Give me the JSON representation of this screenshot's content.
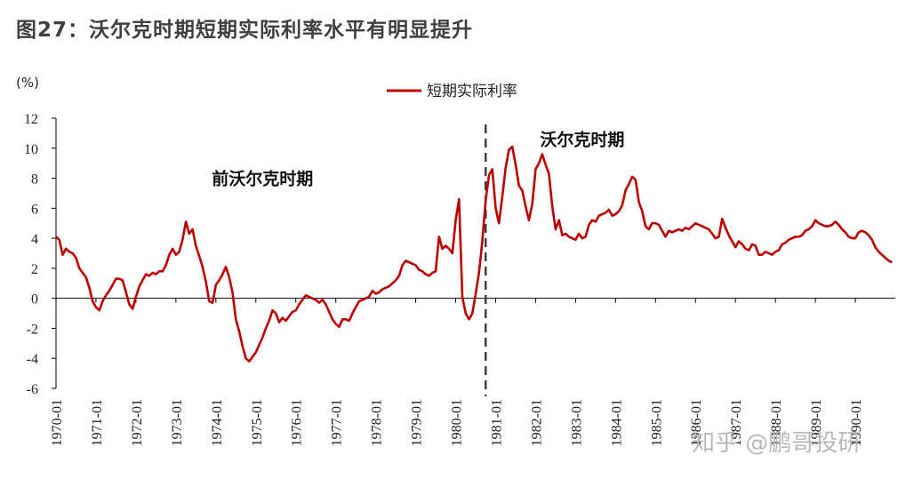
{
  "figure_title": "图27：沃尔克时期短期实际利率水平有明显提升",
  "watermark": "知乎 @鹏哥投研",
  "colors": {
    "series": "#c00000",
    "axis": "#000000",
    "divider": "#404040"
  },
  "chart_data": {
    "type": "line",
    "title": "",
    "ylabel": "(%)",
    "xlabel": "",
    "ylim": [
      -6,
      12
    ],
    "yticks": [
      -6,
      -4,
      -2,
      0,
      2,
      4,
      6,
      8,
      10,
      12
    ],
    "xlim": [
      "1970-01",
      "1990-12"
    ],
    "xticks": [
      "1970-01",
      "1971-01",
      "1972-01",
      "1973-01",
      "1974-01",
      "1975-01",
      "1976-01",
      "1977-01",
      "1978-01",
      "1979-01",
      "1980-01",
      "1981-01",
      "1982-01",
      "1983-01",
      "1984-01",
      "1985-01",
      "1986-01",
      "1987-01",
      "1988-01",
      "1989-01",
      "1990-01"
    ],
    "grid": false,
    "legend": {
      "position": "top-center",
      "entries": [
        "短期实际利率"
      ]
    },
    "annotations": [
      {
        "text": "前沃尔克时期",
        "x": "1975-03",
        "y": 7.6
      },
      {
        "text": "沃尔克时期",
        "x": "1983-03",
        "y": 10.2
      }
    ],
    "divider_x": "1980-10",
    "series": [
      {
        "name": "短期实际利率",
        "points": [
          [
            "1970-01",
            4.1
          ],
          [
            "1970-02",
            3.9
          ],
          [
            "1970-03",
            2.9
          ],
          [
            "1970-04",
            3.3
          ],
          [
            "1970-05",
            3.1
          ],
          [
            "1970-06",
            3.0
          ],
          [
            "1970-07",
            2.7
          ],
          [
            "1970-08",
            2.0
          ],
          [
            "1970-09",
            1.7
          ],
          [
            "1970-10",
            1.4
          ],
          [
            "1970-11",
            0.7
          ],
          [
            "1970-12",
            -0.2
          ],
          [
            "1971-01",
            -0.6
          ],
          [
            "1971-02",
            -0.8
          ],
          [
            "1971-03",
            -0.2
          ],
          [
            "1971-04",
            0.2
          ],
          [
            "1971-05",
            0.5
          ],
          [
            "1971-06",
            0.9
          ],
          [
            "1971-07",
            1.3
          ],
          [
            "1971-08",
            1.3
          ],
          [
            "1971-09",
            1.2
          ],
          [
            "1971-10",
            0.4
          ],
          [
            "1971-11",
            -0.4
          ],
          [
            "1971-12",
            -0.7
          ],
          [
            "1972-01",
            0.1
          ],
          [
            "1972-02",
            0.8
          ],
          [
            "1972-03",
            1.2
          ],
          [
            "1972-04",
            1.6
          ],
          [
            "1972-05",
            1.5
          ],
          [
            "1972-06",
            1.7
          ],
          [
            "1972-07",
            1.6
          ],
          [
            "1972-08",
            1.8
          ],
          [
            "1972-09",
            1.8
          ],
          [
            "1972-10",
            2.2
          ],
          [
            "1972-11",
            2.9
          ],
          [
            "1972-12",
            3.3
          ],
          [
            "1973-01",
            2.9
          ],
          [
            "1973-02",
            3.1
          ],
          [
            "1973-03",
            3.9
          ],
          [
            "1973-04",
            5.1
          ],
          [
            "1973-05",
            4.3
          ],
          [
            "1973-06",
            4.6
          ],
          [
            "1973-07",
            3.5
          ],
          [
            "1973-08",
            2.8
          ],
          [
            "1973-09",
            2.1
          ],
          [
            "1973-10",
            1.1
          ],
          [
            "1973-11",
            -0.2
          ],
          [
            "1973-12",
            -0.3
          ],
          [
            "1974-01",
            0.9
          ],
          [
            "1974-02",
            1.2
          ],
          [
            "1974-03",
            1.6
          ],
          [
            "1974-04",
            2.1
          ],
          [
            "1974-05",
            1.4
          ],
          [
            "1974-06",
            0.4
          ],
          [
            "1974-07",
            -1.4
          ],
          [
            "1974-08",
            -2.2
          ],
          [
            "1974-09",
            -3.2
          ],
          [
            "1974-10",
            -4.0
          ],
          [
            "1974-11",
            -4.2
          ],
          [
            "1974-12",
            -3.9
          ],
          [
            "1975-01",
            -3.6
          ],
          [
            "1975-02",
            -3.1
          ],
          [
            "1975-03",
            -2.6
          ],
          [
            "1975-04",
            -2.0
          ],
          [
            "1975-05",
            -1.5
          ],
          [
            "1975-06",
            -0.8
          ],
          [
            "1975-07",
            -1.0
          ],
          [
            "1975-08",
            -1.6
          ],
          [
            "1975-09",
            -1.3
          ],
          [
            "1975-10",
            -1.5
          ],
          [
            "1975-11",
            -1.2
          ],
          [
            "1975-12",
            -0.9
          ],
          [
            "1976-01",
            -0.8
          ],
          [
            "1976-02",
            -0.4
          ],
          [
            "1976-03",
            -0.1
          ],
          [
            "1976-04",
            0.2
          ],
          [
            "1976-05",
            0.1
          ],
          [
            "1976-06",
            0.0
          ],
          [
            "1976-07",
            -0.1
          ],
          [
            "1976-08",
            -0.3
          ],
          [
            "1976-09",
            -0.1
          ],
          [
            "1976-10",
            -0.4
          ],
          [
            "1976-11",
            -0.9
          ],
          [
            "1976-12",
            -1.4
          ],
          [
            "1977-01",
            -1.7
          ],
          [
            "1977-02",
            -1.9
          ],
          [
            "1977-03",
            -1.4
          ],
          [
            "1977-04",
            -1.4
          ],
          [
            "1977-05",
            -1.5
          ],
          [
            "1977-06",
            -1.0
          ],
          [
            "1977-07",
            -0.6
          ],
          [
            "1977-08",
            -0.2
          ],
          [
            "1977-09",
            -0.1
          ],
          [
            "1977-10",
            0.0
          ],
          [
            "1977-11",
            0.1
          ],
          [
            "1977-12",
            0.5
          ],
          [
            "1978-01",
            0.3
          ],
          [
            "1978-02",
            0.4
          ],
          [
            "1978-03",
            0.6
          ],
          [
            "1978-04",
            0.7
          ],
          [
            "1978-05",
            0.8
          ],
          [
            "1978-06",
            1.0
          ],
          [
            "1978-07",
            1.2
          ],
          [
            "1978-08",
            1.5
          ],
          [
            "1978-09",
            2.2
          ],
          [
            "1978-10",
            2.5
          ],
          [
            "1978-11",
            2.4
          ],
          [
            "1978-12",
            2.3
          ],
          [
            "1979-01",
            2.2
          ],
          [
            "1979-02",
            1.9
          ],
          [
            "1979-03",
            1.8
          ],
          [
            "1979-04",
            1.6
          ],
          [
            "1979-05",
            1.5
          ],
          [
            "1979-06",
            1.7
          ],
          [
            "1979-07",
            1.8
          ],
          [
            "1979-08",
            4.1
          ],
          [
            "1979-09",
            3.3
          ],
          [
            "1979-10",
            3.5
          ],
          [
            "1979-11",
            3.3
          ],
          [
            "1979-12",
            3.0
          ],
          [
            "1980-01",
            5.2
          ],
          [
            "1980-02",
            6.6
          ],
          [
            "1980-03",
            0.1
          ],
          [
            "1980-04",
            -1.0
          ],
          [
            "1980-05",
            -1.4
          ],
          [
            "1980-06",
            -1.0
          ],
          [
            "1980-07",
            0.3
          ],
          [
            "1980-08",
            1.7
          ],
          [
            "1980-09",
            3.8
          ],
          [
            "1980-10",
            6.5
          ],
          [
            "1980-11",
            8.2
          ],
          [
            "1980-12",
            8.6
          ],
          [
            "1981-01",
            6.0
          ],
          [
            "1981-02",
            5.0
          ],
          [
            "1981-03",
            6.8
          ],
          [
            "1981-04",
            8.7
          ],
          [
            "1981-05",
            9.9
          ],
          [
            "1981-06",
            10.1
          ],
          [
            "1981-07",
            8.9
          ],
          [
            "1981-08",
            7.5
          ],
          [
            "1981-09",
            7.2
          ],
          [
            "1981-10",
            6.1
          ],
          [
            "1981-11",
            5.2
          ],
          [
            "1981-12",
            6.3
          ],
          [
            "1982-01",
            8.6
          ],
          [
            "1982-02",
            9.0
          ],
          [
            "1982-03",
            9.6
          ],
          [
            "1982-04",
            8.9
          ],
          [
            "1982-05",
            8.3
          ],
          [
            "1982-06",
            6.1
          ],
          [
            "1982-07",
            4.6
          ],
          [
            "1982-08",
            5.2
          ],
          [
            "1982-09",
            4.2
          ],
          [
            "1982-10",
            4.3
          ],
          [
            "1982-11",
            4.1
          ],
          [
            "1982-12",
            4.0
          ],
          [
            "1983-01",
            3.9
          ],
          [
            "1983-02",
            4.3
          ],
          [
            "1983-03",
            4.0
          ],
          [
            "1983-04",
            4.1
          ],
          [
            "1983-05",
            4.9
          ],
          [
            "1983-06",
            5.2
          ],
          [
            "1983-07",
            5.1
          ],
          [
            "1983-08",
            5.5
          ],
          [
            "1983-09",
            5.6
          ],
          [
            "1983-10",
            5.7
          ],
          [
            "1983-11",
            5.9
          ],
          [
            "1983-12",
            5.5
          ],
          [
            "1984-01",
            5.6
          ],
          [
            "1984-02",
            5.8
          ],
          [
            "1984-03",
            6.2
          ],
          [
            "1984-04",
            7.2
          ],
          [
            "1984-05",
            7.6
          ],
          [
            "1984-06",
            8.1
          ],
          [
            "1984-07",
            7.9
          ],
          [
            "1984-08",
            6.4
          ],
          [
            "1984-09",
            5.8
          ],
          [
            "1984-10",
            4.8
          ],
          [
            "1984-11",
            4.6
          ],
          [
            "1984-12",
            5.0
          ],
          [
            "1985-01",
            5.0
          ],
          [
            "1985-02",
            4.9
          ],
          [
            "1985-03",
            4.5
          ],
          [
            "1985-04",
            4.1
          ],
          [
            "1985-05",
            4.5
          ],
          [
            "1985-06",
            4.4
          ],
          [
            "1985-07",
            4.5
          ],
          [
            "1985-08",
            4.6
          ],
          [
            "1985-09",
            4.5
          ],
          [
            "1985-10",
            4.7
          ],
          [
            "1985-11",
            4.6
          ],
          [
            "1985-12",
            4.8
          ],
          [
            "1986-01",
            5.0
          ],
          [
            "1986-02",
            4.9
          ],
          [
            "1986-03",
            4.8
          ],
          [
            "1986-04",
            4.7
          ],
          [
            "1986-05",
            4.6
          ],
          [
            "1986-06",
            4.3
          ],
          [
            "1986-07",
            4.0
          ],
          [
            "1986-08",
            4.1
          ],
          [
            "1986-09",
            5.3
          ],
          [
            "1986-10",
            4.7
          ],
          [
            "1986-11",
            4.2
          ],
          [
            "1986-12",
            3.8
          ],
          [
            "1987-01",
            3.4
          ],
          [
            "1987-02",
            3.8
          ],
          [
            "1987-03",
            3.6
          ],
          [
            "1987-04",
            3.3
          ],
          [
            "1987-05",
            3.2
          ],
          [
            "1987-06",
            3.6
          ],
          [
            "1987-07",
            3.5
          ],
          [
            "1987-08",
            2.9
          ],
          [
            "1987-09",
            2.9
          ],
          [
            "1987-10",
            3.1
          ],
          [
            "1987-11",
            3.0
          ],
          [
            "1987-12",
            2.9
          ],
          [
            "1988-01",
            3.1
          ],
          [
            "1988-02",
            3.2
          ],
          [
            "1988-03",
            3.6
          ],
          [
            "1988-04",
            3.7
          ],
          [
            "1988-05",
            3.9
          ],
          [
            "1988-06",
            4.0
          ],
          [
            "1988-07",
            4.1
          ],
          [
            "1988-08",
            4.1
          ],
          [
            "1988-09",
            4.2
          ],
          [
            "1988-10",
            4.5
          ],
          [
            "1988-11",
            4.6
          ],
          [
            "1988-12",
            4.8
          ],
          [
            "1989-01",
            5.2
          ],
          [
            "1989-02",
            5.0
          ],
          [
            "1989-03",
            4.9
          ],
          [
            "1989-04",
            4.8
          ],
          [
            "1989-05",
            4.8
          ],
          [
            "1989-06",
            4.9
          ],
          [
            "1989-07",
            5.1
          ],
          [
            "1989-08",
            4.9
          ],
          [
            "1989-09",
            4.6
          ],
          [
            "1989-10",
            4.4
          ],
          [
            "1989-11",
            4.1
          ],
          [
            "1989-12",
            4.0
          ],
          [
            "1990-01",
            4.0
          ],
          [
            "1990-02",
            4.4
          ],
          [
            "1990-03",
            4.5
          ],
          [
            "1990-04",
            4.4
          ],
          [
            "1990-05",
            4.2
          ],
          [
            "1990-06",
            3.9
          ],
          [
            "1990-07",
            3.4
          ],
          [
            "1990-08",
            3.1
          ],
          [
            "1990-09",
            2.9
          ],
          [
            "1990-10",
            2.7
          ],
          [
            "1990-11",
            2.5
          ],
          [
            "1990-12",
            2.4
          ]
        ]
      }
    ]
  }
}
